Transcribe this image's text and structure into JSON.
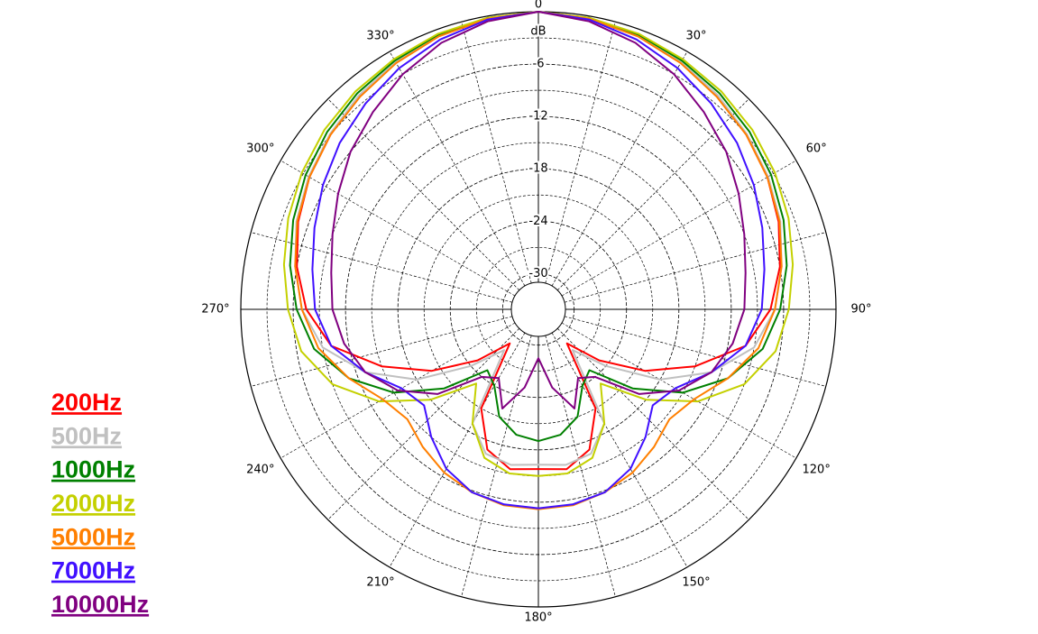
{
  "chart_data": {
    "type": "polar",
    "raxis_label": "dB",
    "rlim": [
      -31,
      0
    ],
    "rticks": [
      0,
      -6,
      -12,
      -18,
      -24,
      -30
    ],
    "rgrid": [
      -3,
      -9,
      -15,
      -21,
      -27
    ],
    "thetaticks": [
      {
        "value": 30,
        "label": "30°"
      },
      {
        "value": 60,
        "label": "60°"
      },
      {
        "value": 90,
        "label": "90°"
      },
      {
        "value": 120,
        "label": "120°"
      },
      {
        "value": 150,
        "label": "150°"
      },
      {
        "value": 180,
        "label": "180°"
      },
      {
        "value": 210,
        "label": "210°"
      },
      {
        "value": 240,
        "label": "240°"
      },
      {
        "value": 270,
        "label": "270°"
      },
      {
        "value": 300,
        "label": "300°"
      },
      {
        "value": 330,
        "label": "330°"
      }
    ],
    "thetagrid": [
      0,
      15,
      30,
      45,
      60,
      75,
      90,
      105,
      120,
      135,
      150,
      165,
      180,
      195,
      210,
      225,
      240,
      255,
      270,
      285,
      300,
      315,
      330,
      345
    ],
    "x": [
      0,
      10,
      20,
      30,
      40,
      50,
      60,
      70,
      80,
      90,
      100,
      110,
      120,
      130,
      140,
      150,
      160,
      170,
      180,
      190,
      200,
      210,
      220,
      230,
      240,
      250,
      260,
      270,
      280,
      290,
      300,
      310,
      320,
      330,
      340,
      350
    ],
    "series": [
      {
        "name": "200Hz",
        "color": "#ff0000",
        "values": [
          0,
          -0.3,
          -0.8,
          -1.5,
          -2.2,
          -3,
          -3.8,
          -4.8,
          -6,
          -7.5,
          -10,
          -15,
          -20,
          -25,
          -29,
          -21,
          -17,
          -15.5,
          -15.8,
          -15.5,
          -17,
          -21,
          -29,
          -25,
          -20,
          -15,
          -10,
          -7.5,
          -6,
          -4.8,
          -3.8,
          -3,
          -2.2,
          -1.5,
          -0.8,
          -0.3
        ]
      },
      {
        "name": "500Hz",
        "color": "#c0c0c0",
        "values": [
          0,
          -0.3,
          -0.8,
          -1.4,
          -2.1,
          -2.9,
          -3.7,
          -4.6,
          -5.8,
          -7,
          -9,
          -13,
          -18,
          -24,
          -28,
          -19,
          -16.5,
          -16,
          -16.3,
          -16,
          -16.5,
          -19,
          -28,
          -24,
          -18,
          -13,
          -9,
          -7,
          -5.8,
          -4.6,
          -3.7,
          -2.9,
          -2.1,
          -1.4,
          -0.8,
          -0.3
        ]
      },
      {
        "name": "1000Hz",
        "color": "#008000",
        "values": [
          0,
          -0.2,
          -0.6,
          -1.2,
          -1.8,
          -2.5,
          -3.3,
          -4.2,
          -5.2,
          -6.4,
          -8,
          -11,
          -15,
          -20,
          -25,
          -24,
          -21,
          -19.5,
          -19,
          -19.5,
          -21,
          -24,
          -25,
          -20,
          -15,
          -11,
          -8,
          -6.4,
          -5.2,
          -4.2,
          -3.3,
          -2.5,
          -1.8,
          -1.2,
          -0.6,
          -0.2
        ]
      },
      {
        "name": "2000Hz",
        "color": "#c4d000",
        "values": [
          0,
          -0.2,
          -0.5,
          -1,
          -1.5,
          -2.1,
          -2.8,
          -3.6,
          -4.5,
          -5.4,
          -6.5,
          -9,
          -13,
          -18,
          -23,
          -19,
          -16,
          -15,
          -15,
          -15,
          -16,
          -19,
          -23,
          -18,
          -13,
          -9,
          -6.5,
          -5.4,
          -4.5,
          -3.6,
          -2.8,
          -2.1,
          -1.5,
          -1,
          -0.5,
          -0.2
        ]
      },
      {
        "name": "5000Hz",
        "color": "#ff7f00",
        "values": [
          0,
          -0.3,
          -0.8,
          -1.5,
          -2.3,
          -3,
          -3.8,
          -4.7,
          -5.8,
          -7,
          -8.5,
          -11,
          -13.5,
          -14.5,
          -13.5,
          -12.5,
          -11.8,
          -11.3,
          -11.2,
          -11.3,
          -11.8,
          -12.5,
          -13.5,
          -14.5,
          -13.5,
          -11,
          -8.5,
          -7,
          -5.8,
          -4.7,
          -3.8,
          -3,
          -2.3,
          -1.5,
          -0.8,
          -0.3
        ]
      },
      {
        "name": "7000Hz",
        "color": "#4010ff",
        "values": [
          0,
          -0.4,
          -1.2,
          -2.2,
          -3.3,
          -4.4,
          -5.6,
          -6.8,
          -7.8,
          -8.5,
          -10,
          -13,
          -16,
          -17,
          -15,
          -13,
          -11.8,
          -11.4,
          -11.3,
          -11.4,
          -11.8,
          -13,
          -15,
          -17,
          -16,
          -13,
          -10,
          -8.5,
          -7.8,
          -6.8,
          -5.6,
          -4.4,
          -3.3,
          -2.2,
          -1.2,
          -0.4
        ]
      },
      {
        "name": "10000Hz",
        "color": "#800080",
        "values": [
          0,
          -0.6,
          -1.6,
          -3,
          -4.6,
          -6,
          -7.6,
          -9,
          -10,
          -10.5,
          -11.5,
          -13,
          -15.5,
          -19,
          -24,
          -25,
          -22,
          -25,
          -28.5,
          -25,
          -22,
          -25,
          -24,
          -19,
          -15.5,
          -13,
          -11.5,
          -10.5,
          -10,
          -9,
          -7.6,
          -6,
          -4.6,
          -3,
          -1.6,
          -0.6
        ]
      }
    ]
  }
}
